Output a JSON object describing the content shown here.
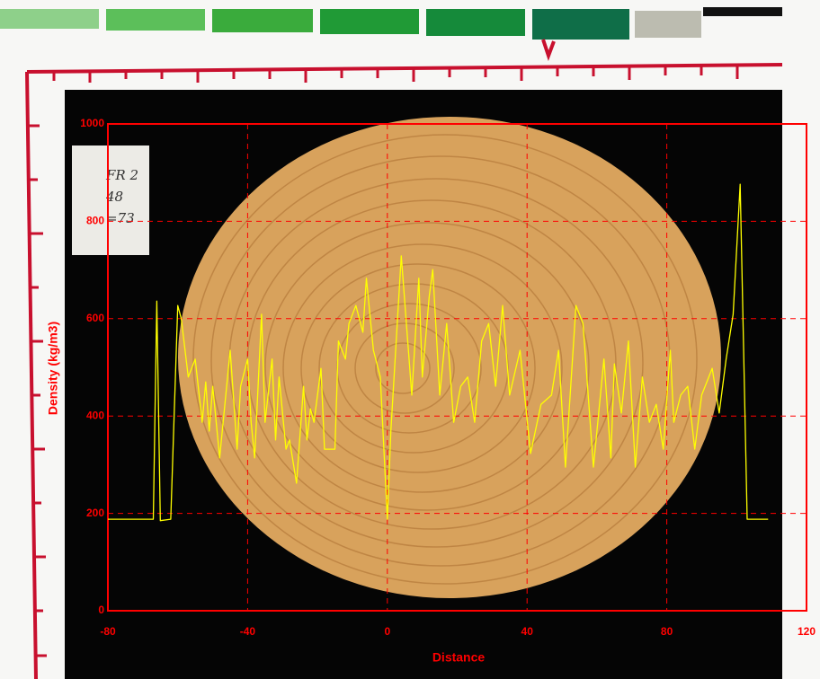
{
  "chart_data": {
    "type": "line",
    "xlabel": "Distance",
    "ylabel": "Density (kg/m3)",
    "annotations": [
      "FR 2",
      "48",
      "=73"
    ],
    "x": [
      -80,
      -67,
      -66,
      -65,
      -62,
      -60,
      -59,
      -57,
      -55,
      -53,
      -52,
      -51,
      -50,
      -48,
      -45,
      -43,
      -42,
      -40,
      -39,
      -38,
      -36,
      -35,
      -33,
      -32,
      -31,
      -29,
      -28,
      -26,
      -24,
      -23,
      -22,
      -21,
      -19,
      -18,
      -15,
      -14,
      -12,
      -11,
      -9,
      -7,
      -6,
      -4,
      -2,
      0,
      1,
      4,
      7,
      9,
      10,
      12,
      13,
      15,
      17,
      19,
      21,
      23,
      25,
      27,
      29,
      31,
      33,
      35,
      38,
      41,
      44,
      47,
      49,
      51,
      54,
      56,
      59,
      62,
      64,
      65,
      67,
      69,
      71,
      73,
      75,
      77,
      79,
      81,
      82,
      84,
      86,
      88,
      90,
      93,
      95,
      97,
      99,
      101,
      103,
      109
    ],
    "values": [
      188,
      188,
      636,
      185,
      188,
      627,
      600,
      480,
      517,
      387,
      470,
      369,
      461,
      314,
      535,
      332,
      461,
      517,
      387,
      314,
      609,
      387,
      517,
      351,
      480,
      332,
      351,
      262,
      461,
      351,
      415,
      387,
      498,
      332,
      332,
      554,
      517,
      590,
      627,
      572,
      683,
      535,
      480,
      188,
      369,
      729,
      443,
      683,
      480,
      646,
      701,
      443,
      590,
      387,
      461,
      480,
      387,
      554,
      590,
      461,
      627,
      443,
      535,
      323,
      424,
      443,
      535,
      295,
      627,
      590,
      295,
      517,
      314,
      507,
      406,
      554,
      295,
      480,
      387,
      424,
      332,
      535,
      387,
      443,
      461,
      332,
      443,
      498,
      406,
      517,
      609,
      876,
      188,
      188
    ],
    "color": "#ffff00",
    "xlim": [
      -80,
      120
    ],
    "xticks": [
      -80,
      -40,
      0,
      40,
      80,
      120
    ],
    "ylim": [
      0,
      1000
    ],
    "yticks": [
      0,
      200,
      400,
      600,
      800,
      1000
    ],
    "grid": true,
    "grid_color": "#ff0000",
    "axis_color": "#ff0000"
  }
}
